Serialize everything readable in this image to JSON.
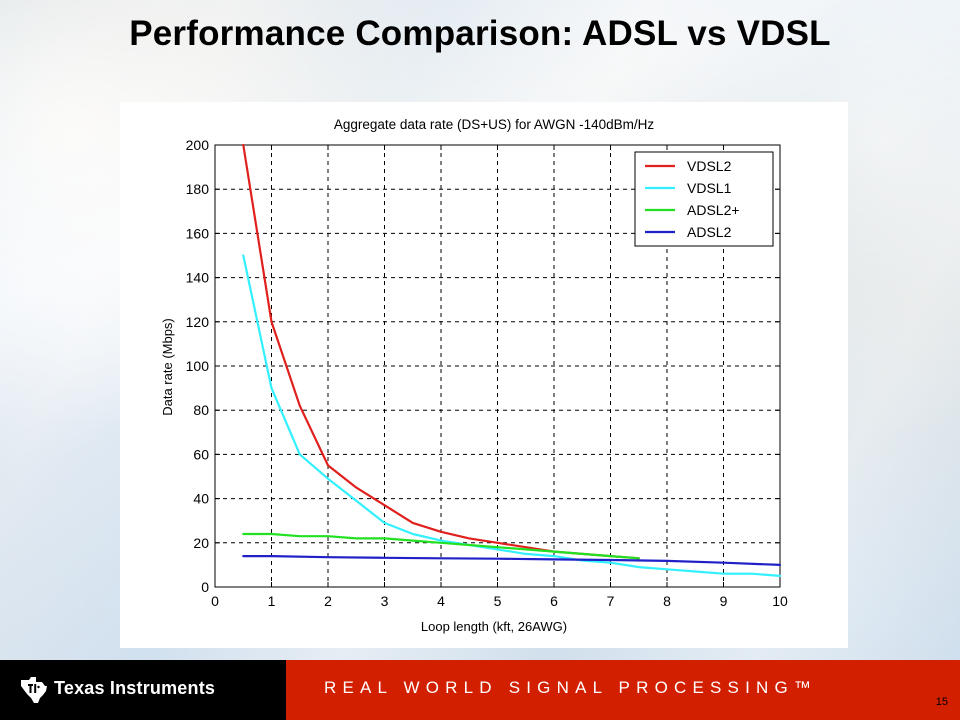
{
  "slide": {
    "title": "Performance Comparison: ADSL vs VDSL",
    "page_number": "15"
  },
  "footer": {
    "company_name": "Texas Instruments",
    "slogan": "REAL WORLD SIGNAL PROCESSING™"
  },
  "colors": {
    "footer_black": "#000000",
    "footer_red": "#d21f00",
    "grid": "#000000"
  },
  "chart_data": {
    "type": "line",
    "title": "Aggregate data rate (DS+US) for AWGN -140dBm/Hz",
    "xlabel": "Loop length (kft, 26AWG)",
    "ylabel": "Data rate (Mbps)",
    "xlim": [
      0,
      10
    ],
    "ylim": [
      0,
      200
    ],
    "xticks": [
      0,
      1,
      2,
      3,
      4,
      5,
      6,
      7,
      8,
      9,
      10
    ],
    "yticks": [
      0,
      20,
      40,
      60,
      80,
      100,
      120,
      140,
      160,
      180,
      200
    ],
    "grid": true,
    "grid_style": "dashed",
    "legend_position": "top-right",
    "series": [
      {
        "name": "VDSL2",
        "color": "#e0201c",
        "x": [
          0.5,
          1.0,
          1.5,
          2.0,
          2.5,
          3.0,
          3.5,
          4.0,
          4.5,
          5.0,
          5.5,
          6.0,
          6.5,
          7.0,
          7.5
        ],
        "y": [
          200,
          120,
          82,
          55,
          45,
          37,
          29,
          25,
          22,
          20,
          18,
          16,
          15,
          14,
          13
        ]
      },
      {
        "name": "VDSL1",
        "color": "#33f0ff",
        "x": [
          0.5,
          1.0,
          1.5,
          2.0,
          2.5,
          3.0,
          3.5,
          4.0,
          4.5,
          5.0,
          5.5,
          6.0,
          6.5,
          7.0,
          7.5,
          8.0,
          8.5,
          9.0,
          9.5,
          10.0
        ],
        "y": [
          150,
          90,
          60,
          49,
          39,
          29,
          24,
          21,
          19,
          17,
          15,
          14,
          12,
          11,
          9,
          8,
          7,
          6,
          6,
          5
        ]
      },
      {
        "name": "ADSL2+",
        "color": "#22e022",
        "x": [
          0.5,
          1.0,
          1.5,
          2.0,
          2.5,
          3.0,
          3.5,
          4.0,
          4.5,
          5.0,
          5.5,
          6.0,
          6.5,
          7.0,
          7.5
        ],
        "y": [
          24,
          24,
          23,
          23,
          22,
          22,
          21,
          20,
          19,
          18,
          17,
          16,
          15,
          14,
          13
        ]
      },
      {
        "name": "ADSL2",
        "color": "#2020c8",
        "x": [
          0.5,
          1.0,
          2.0,
          3.0,
          4.0,
          5.0,
          6.0,
          7.0,
          8.0,
          9.0,
          10.0
        ],
        "y": [
          14,
          14,
          13.5,
          13.2,
          13,
          12.8,
          12.5,
          12.2,
          11.8,
          11,
          10
        ]
      }
    ]
  }
}
